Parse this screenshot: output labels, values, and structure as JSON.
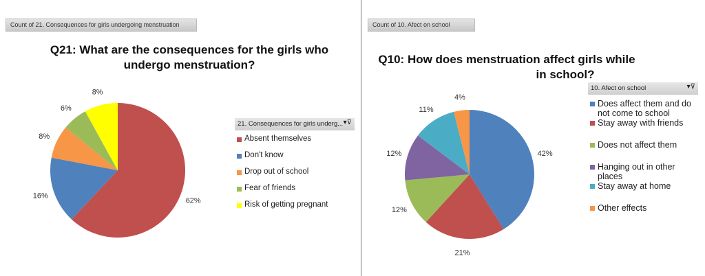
{
  "chart_data": [
    {
      "type": "pie",
      "count_label": "Count of 21. Consequences for girls undergoing menstruation",
      "title": "Q21: What are the consequences for the girls who undergo menstruation?",
      "title_lines": [
        "Q21: What are the consequences for the girls who",
        "undergo menstruation?"
      ],
      "legend_title": "21. Consequences for girls underg...",
      "legend_placement": "right",
      "categories": [
        "Absent themselves",
        "Don't know",
        "Drop out of school",
        "Fear of friends",
        "Risk of getting pregnant"
      ],
      "values": [
        62,
        16,
        8,
        6,
        8
      ],
      "labels": [
        "62%",
        "16%",
        "8%",
        "6%",
        "8%"
      ],
      "colors": [
        "#C0504D",
        "#4F81BD",
        "#F79646",
        "#9BBB59",
        "#FFFF00"
      ]
    },
    {
      "type": "pie",
      "count_label": "Count of 10. Afect on school",
      "title": "Q10: How does menstruation affect girls while in school?",
      "title_lines": [
        "Q10: How does menstruation affect girls while",
        "in school?"
      ],
      "legend_title": "10. Afect on school",
      "legend_placement": "right",
      "categories": [
        "Does affect them and do not come to school",
        "Stay away with friends",
        "Does not affect them",
        "Hanging out in other places",
        "Stay away at home",
        "Other effects"
      ],
      "values": [
        42,
        21,
        12,
        12,
        11,
        4
      ],
      "labels": [
        "42%",
        "21%",
        "12%",
        "12%",
        "11%",
        "4%"
      ],
      "colors": [
        "#4F81BD",
        "#C0504D",
        "#9BBB59",
        "#8064A2",
        "#4BACC6",
        "#F79646"
      ]
    }
  ],
  "filter_icon": "filter-dropdown-icon"
}
